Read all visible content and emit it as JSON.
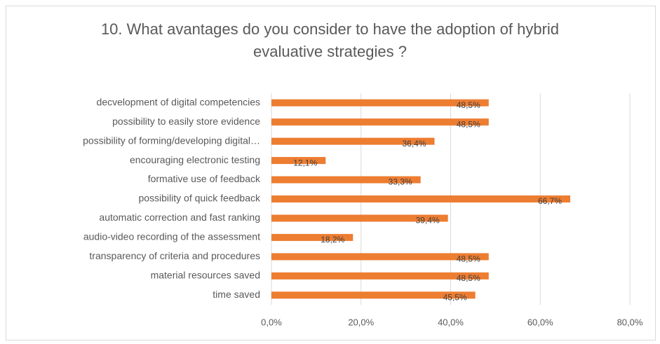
{
  "chart_data": {
    "type": "bar",
    "orientation": "horizontal",
    "title": "10. What avantages do you consider to have the adoption of hybrid evaluative strategies ?",
    "categories": [
      "decvelopment of digital competencies",
      "possibility to easily store evidence",
      "possibility of forming/developing digital…",
      "encouraging electronic testing",
      "formative use of feedback",
      "possibility of quick feedback",
      "automatic correction and fast ranking",
      "audio-video recording of the assessment",
      "transparency of criteria and procedures",
      "material resources saved",
      "time saved"
    ],
    "values": [
      48.5,
      48.5,
      36.4,
      12.1,
      33.3,
      66.7,
      39.4,
      18.2,
      48.5,
      48.5,
      45.5
    ],
    "value_labels": [
      "48,5%",
      "48,5%",
      "36,4%",
      "12,1%",
      "33,3%",
      "66,7%",
      "39,4%",
      "18,2%",
      "48,5%",
      "48,5%",
      "45,5%"
    ],
    "color": "#ed7d31",
    "xlim": [
      0,
      80
    ],
    "xticks": [
      {
        "value": 0,
        "label": "0,0%"
      },
      {
        "value": 20,
        "label": "20,0%"
      },
      {
        "value": 40,
        "label": "40,0%"
      },
      {
        "value": 60,
        "label": "60,0%"
      },
      {
        "value": 80,
        "label": "80,0%"
      }
    ],
    "grid": true
  }
}
